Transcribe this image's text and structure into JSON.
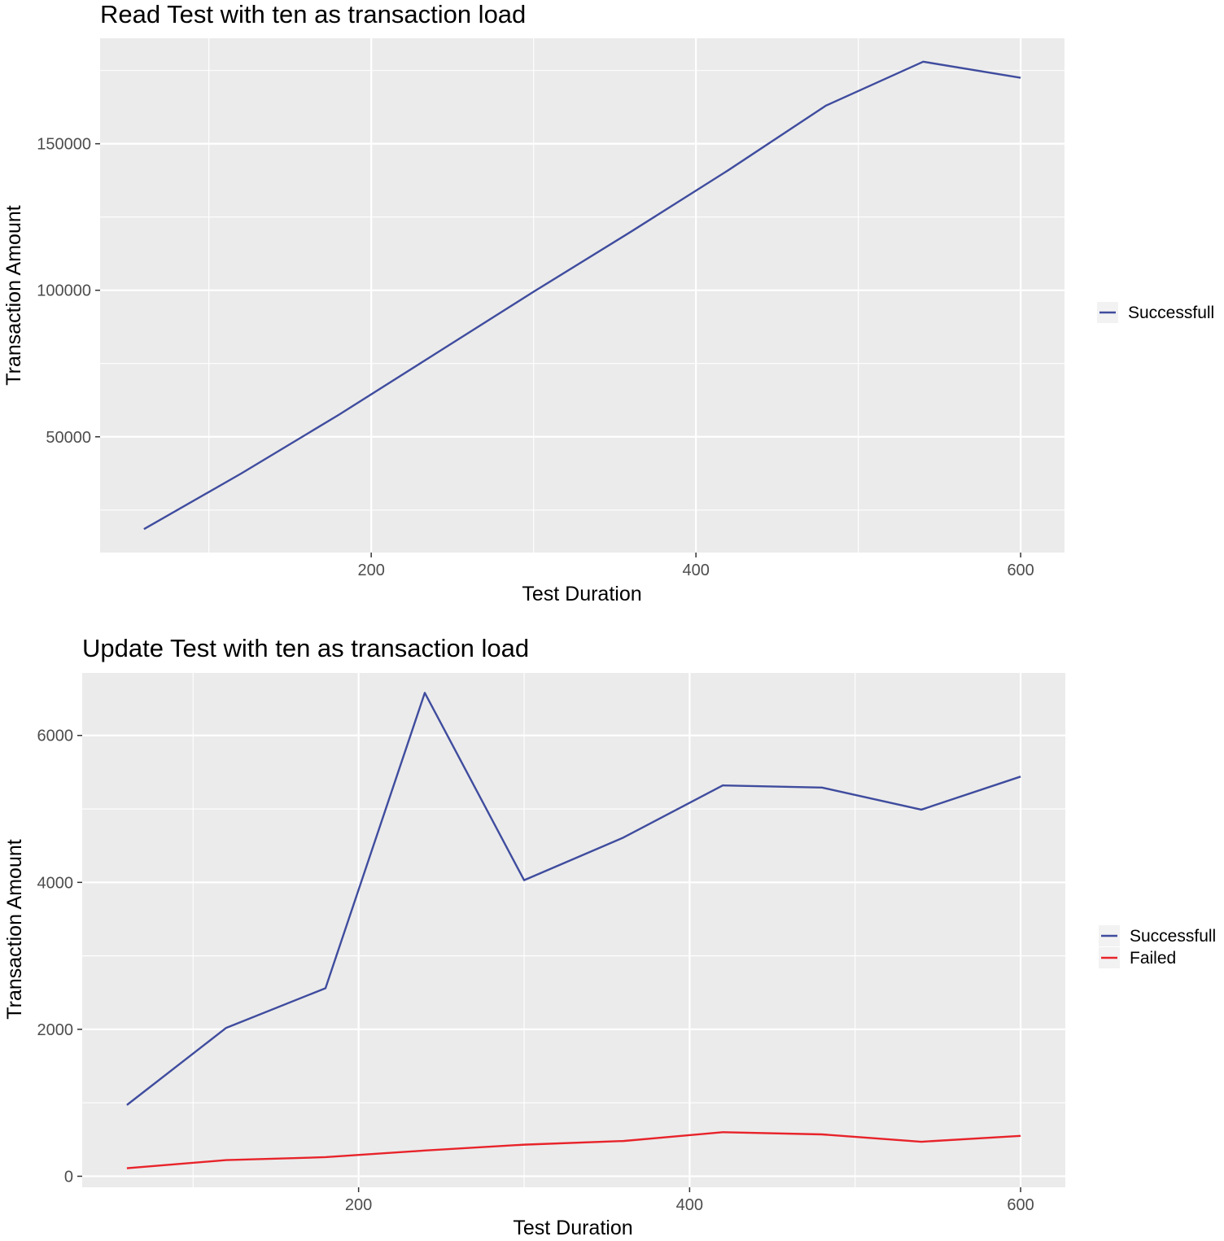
{
  "chart_data": [
    {
      "type": "line",
      "title": "Read Test with ten as transaction load",
      "xlabel": "Test Duration",
      "ylabel": "Transaction Amount",
      "xlim": [
        33,
        627
      ],
      "ylim": [
        10500,
        186000
      ],
      "x_ticks": [
        200,
        400,
        600
      ],
      "x_tick_labels": [
        "200",
        "400",
        "600"
      ],
      "y_ticks": [
        50000,
        100000,
        150000
      ],
      "y_tick_labels": [
        "50000",
        "100000",
        "150000"
      ],
      "grid": true,
      "legend_position": "right",
      "series": [
        {
          "name": "Successfull",
          "color": "#3f4c9e",
          "x": [
            60,
            120,
            180,
            240,
            300,
            360,
            420,
            480,
            540,
            600
          ],
          "y": [
            18500,
            37500,
            57500,
            78500,
            99500,
            120000,
            141000,
            163000,
            178000,
            172500
          ]
        }
      ]
    },
    {
      "type": "line",
      "title": "Update Test with ten as transaction load",
      "xlabel": "Test Duration",
      "ylabel": "Transaction Amount",
      "xlim": [
        33,
        627
      ],
      "ylim": [
        -150,
        6850
      ],
      "x_ticks": [
        200,
        400,
        600
      ],
      "x_tick_labels": [
        "200",
        "400",
        "600"
      ],
      "y_ticks": [
        0,
        2000,
        4000,
        6000
      ],
      "y_tick_labels": [
        "0",
        "2000",
        "4000",
        "6000"
      ],
      "grid": true,
      "legend_position": "right",
      "series": [
        {
          "name": "Successfull",
          "color": "#3f4c9e",
          "x": [
            60,
            120,
            180,
            240,
            300,
            360,
            420,
            480,
            540,
            600
          ],
          "y": [
            970,
            2020,
            2560,
            6580,
            4030,
            4610,
            5320,
            5290,
            4990,
            5440
          ]
        },
        {
          "name": "Failed",
          "color": "#e8232a",
          "x": [
            60,
            120,
            180,
            240,
            300,
            360,
            420,
            480,
            540,
            600
          ],
          "y": [
            110,
            220,
            260,
            350,
            430,
            480,
            600,
            570,
            470,
            550
          ]
        }
      ]
    }
  ]
}
